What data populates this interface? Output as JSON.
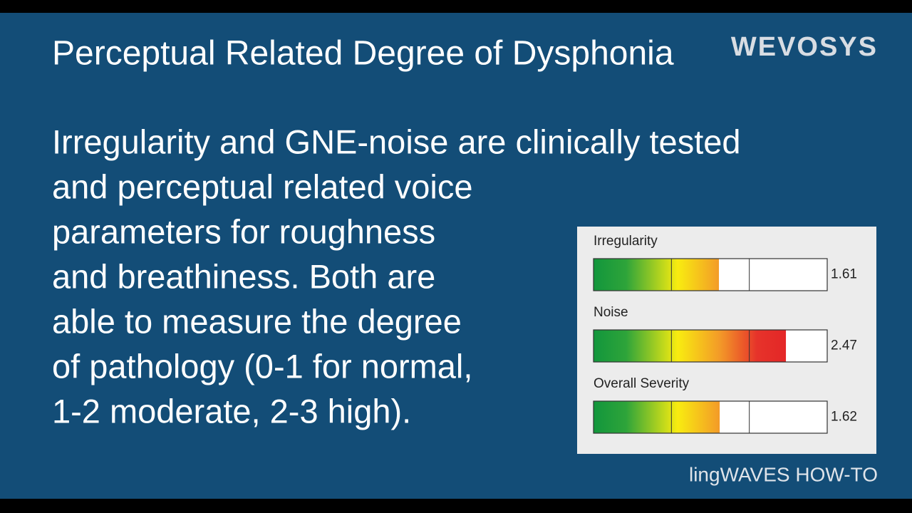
{
  "title": "Perceptual Related Degree of Dysphonia",
  "logo": "WEVOSYS",
  "body_lines": [
    "Irregularity and GNE-noise are clinically tested",
    "and perceptual related voice",
    "parameters for roughness",
    "and breathiness. Both are",
    "able to measure the degree",
    "of pathology (0-1 for normal,",
    "1-2 moderate, 2-3 high)."
  ],
  "panel": {
    "xlim": [
      0,
      3
    ],
    "xticks": [
      1,
      2
    ],
    "gauges": [
      {
        "label": "Irregularity",
        "value": 1.61
      },
      {
        "label": "Noise",
        "value": 2.47
      },
      {
        "label": "Overall Severity",
        "value": 1.62
      }
    ]
  },
  "footer": "lingWAVES HOW-TO"
}
